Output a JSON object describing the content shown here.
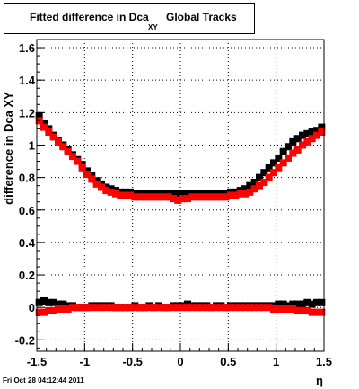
{
  "title": {
    "main": "Fitted difference in Dca",
    "subscript": "XY",
    "tail": "Global Tracks"
  },
  "timestamp": "Fri Oct 28 04:12:44 2011",
  "chart_data": {
    "type": "scatter",
    "title": "Fitted difference in Dca XY Global Tracks",
    "xlabel": "η",
    "ylabel": "difference in Dca XY",
    "xlim": [
      -1.5,
      1.5
    ],
    "ylim": [
      -0.27,
      1.65
    ],
    "grid": true,
    "x_ticks": [
      -1.5,
      -1,
      -0.5,
      0,
      0.5,
      1,
      1.5
    ],
    "x_tick_labels": [
      "-1.5",
      "-1",
      "-0.5",
      "0",
      "0.5",
      "1",
      "1.5"
    ],
    "y_ticks": [
      -0.2,
      0,
      0.2,
      0.4,
      0.6,
      0.8,
      1,
      1.2,
      1.4,
      1.6
    ],
    "y_tick_labels": [
      "-0.2",
      "0",
      "0.2",
      "0.4",
      "0.6",
      "0.8",
      "1",
      "1.2",
      "1.4",
      "1.6"
    ],
    "series": [
      {
        "color": "#000000",
        "x": [
          -1.475,
          -1.425,
          -1.375,
          -1.325,
          -1.275,
          -1.225,
          -1.175,
          -1.125,
          -1.075,
          -1.025,
          -0.975,
          -0.925,
          -0.875,
          -0.825,
          -0.775,
          -0.725,
          -0.675,
          -0.625,
          -0.575,
          -0.525,
          -0.475,
          -0.425,
          -0.375,
          -0.325,
          -0.275,
          -0.225,
          -0.175,
          -0.125,
          -0.075,
          -0.025,
          0.025,
          0.075,
          0.125,
          0.175,
          0.225,
          0.275,
          0.325,
          0.375,
          0.425,
          0.475,
          0.525,
          0.575,
          0.625,
          0.675,
          0.725,
          0.775,
          0.825,
          0.875,
          0.925,
          0.975,
          1.025,
          1.075,
          1.125,
          1.175,
          1.225,
          1.275,
          1.325,
          1.375,
          1.425,
          1.475
        ],
        "y": [
          1.18,
          1.13,
          1.1,
          1.06,
          1.03,
          1.0,
          0.97,
          0.94,
          0.91,
          0.88,
          0.84,
          0.81,
          0.78,
          0.76,
          0.74,
          0.73,
          0.72,
          0.71,
          0.71,
          0.71,
          0.7,
          0.7,
          0.7,
          0.7,
          0.7,
          0.7,
          0.7,
          0.7,
          0.7,
          0.7,
          0.7,
          0.7,
          0.7,
          0.7,
          0.7,
          0.7,
          0.7,
          0.7,
          0.7,
          0.7,
          0.71,
          0.71,
          0.72,
          0.73,
          0.75,
          0.77,
          0.8,
          0.83,
          0.86,
          0.89,
          0.92,
          0.96,
          0.99,
          1.02,
          1.04,
          1.06,
          1.07,
          1.08,
          1.09,
          1.11
        ]
      },
      {
        "color": "#000000",
        "x": [
          -1.475,
          -1.425,
          -1.375,
          -1.325,
          -1.275,
          -1.225,
          -1.175,
          -1.125,
          -1.075,
          -1.025,
          -0.975,
          -0.925,
          -0.875,
          -0.825,
          -0.775,
          -0.725,
          -0.675,
          -0.625,
          -0.575,
          -0.525,
          -0.475,
          -0.425,
          -0.375,
          -0.325,
          -0.275,
          -0.225,
          -0.175,
          -0.125,
          -0.075,
          -0.025,
          0.025,
          0.075,
          0.125,
          0.175,
          0.225,
          0.275,
          0.325,
          0.375,
          0.425,
          0.475,
          0.525,
          0.575,
          0.625,
          0.675,
          0.725,
          0.775,
          0.825,
          0.875,
          0.925,
          0.975,
          1.025,
          1.075,
          1.125,
          1.175,
          1.225,
          1.275,
          1.325,
          1.375,
          1.425,
          1.475
        ],
        "y": [
          0.03,
          0.04,
          0.03,
          0.03,
          0.02,
          0.02,
          0.01,
          0.01,
          0.0,
          0.0,
          0.0,
          0.01,
          0.01,
          0.01,
          0.01,
          0.01,
          0.0,
          0.0,
          0.0,
          0.0,
          0.01,
          0.0,
          0.0,
          0.01,
          0.0,
          0.01,
          0.0,
          0.0,
          0.01,
          0.01,
          0.01,
          0.02,
          0.01,
          0.01,
          0.01,
          0.01,
          0.0,
          0.01,
          0.01,
          0.0,
          0.01,
          0.01,
          0.01,
          0.01,
          0.01,
          0.01,
          0.01,
          0.01,
          0.01,
          0.01,
          0.02,
          0.02,
          0.01,
          0.02,
          0.02,
          0.02,
          0.03,
          0.02,
          0.03,
          0.03
        ]
      },
      {
        "color": "#ff0000",
        "x": [
          -1.475,
          -1.425,
          -1.375,
          -1.325,
          -1.275,
          -1.225,
          -1.175,
          -1.125,
          -1.075,
          -1.025,
          -0.975,
          -0.925,
          -0.875,
          -0.825,
          -0.775,
          -0.725,
          -0.675,
          -0.625,
          -0.575,
          -0.525,
          -0.475,
          -0.425,
          -0.375,
          -0.325,
          -0.275,
          -0.225,
          -0.175,
          -0.125,
          -0.075,
          -0.025,
          0.025,
          0.075,
          0.125,
          0.175,
          0.225,
          0.275,
          0.325,
          0.375,
          0.425,
          0.475,
          0.525,
          0.575,
          0.625,
          0.675,
          0.725,
          0.775,
          0.825,
          0.875,
          0.925,
          0.975,
          1.025,
          1.075,
          1.125,
          1.175,
          1.225,
          1.275,
          1.325,
          1.375,
          1.425,
          1.475
        ],
        "y": [
          1.15,
          1.11,
          1.08,
          1.05,
          1.02,
          0.99,
          0.96,
          0.93,
          0.9,
          0.86,
          0.82,
          0.79,
          0.76,
          0.74,
          0.72,
          0.71,
          0.7,
          0.69,
          0.69,
          0.69,
          0.68,
          0.68,
          0.68,
          0.68,
          0.68,
          0.68,
          0.68,
          0.68,
          0.67,
          0.66,
          0.67,
          0.67,
          0.68,
          0.68,
          0.68,
          0.68,
          0.68,
          0.68,
          0.68,
          0.68,
          0.69,
          0.69,
          0.7,
          0.7,
          0.71,
          0.73,
          0.75,
          0.77,
          0.8,
          0.83,
          0.86,
          0.89,
          0.92,
          0.95,
          0.97,
          1.0,
          1.02,
          1.04,
          1.06,
          1.08
        ]
      },
      {
        "color": "#ff0000",
        "x": [
          -1.475,
          -1.425,
          -1.375,
          -1.325,
          -1.275,
          -1.225,
          -1.175,
          -1.125,
          -1.075,
          -1.025,
          -0.975,
          -0.925,
          -0.875,
          -0.825,
          -0.775,
          -0.725,
          -0.675,
          -0.625,
          -0.575,
          -0.525,
          -0.475,
          -0.425,
          -0.375,
          -0.325,
          -0.275,
          -0.225,
          -0.175,
          -0.125,
          -0.075,
          -0.025,
          0.025,
          0.075,
          0.125,
          0.175,
          0.225,
          0.275,
          0.325,
          0.375,
          0.425,
          0.475,
          0.525,
          0.575,
          0.625,
          0.675,
          0.725,
          0.775,
          0.825,
          0.875,
          0.925,
          0.975,
          1.025,
          1.075,
          1.125,
          1.175,
          1.225,
          1.275,
          1.325,
          1.375,
          1.425,
          1.475
        ],
        "y": [
          -0.03,
          -0.03,
          -0.02,
          -0.02,
          -0.01,
          -0.01,
          -0.01,
          0.0,
          0.0,
          0.0,
          0.0,
          0.0,
          0.0,
          0.0,
          0.0,
          0.0,
          0.0,
          0.0,
          0.0,
          0.0,
          0.0,
          0.0,
          0.0,
          0.0,
          0.0,
          0.0,
          0.0,
          0.0,
          0.0,
          0.0,
          0.0,
          0.0,
          0.0,
          0.0,
          0.0,
          0.0,
          0.0,
          0.0,
          0.0,
          0.0,
          0.0,
          0.0,
          0.0,
          0.0,
          0.0,
          0.0,
          0.0,
          0.0,
          0.0,
          -0.01,
          -0.01,
          -0.01,
          -0.01,
          -0.01,
          -0.02,
          -0.02,
          -0.02,
          -0.03,
          -0.03,
          -0.03
        ]
      }
    ]
  }
}
